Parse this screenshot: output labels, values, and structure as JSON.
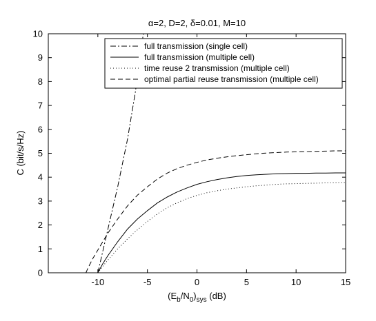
{
  "chart_data": {
    "type": "line",
    "title": "α=2, D=2, δ=0.01, M=10",
    "xlabel": {
      "base": "(E",
      "sub1": "b",
      "mid": "/N",
      "sub2": "0",
      "close": ")",
      "sub3": "sys",
      "unit": " (dB)"
    },
    "ylabel": "C (bit/s/Hz)",
    "xlim": [
      -15,
      15
    ],
    "ylim": [
      0,
      10
    ],
    "xticks": [
      -10,
      -5,
      0,
      5,
      10,
      15
    ],
    "yticks": [
      0,
      1,
      2,
      3,
      4,
      5,
      6,
      7,
      8,
      9,
      10
    ],
    "grid": false,
    "legend_position": "top-right",
    "series": [
      {
        "name": "full transmission (single cell)",
        "style": "dash-dot",
        "x": [
          -10,
          -9.0,
          -8.0,
          -7.0,
          -6.2,
          -5.6,
          -5.4
        ],
        "y": [
          0,
          1.8,
          3.6,
          5.6,
          7.6,
          9.5,
          10
        ]
      },
      {
        "name": "full transmission (multiple cell)",
        "style": "solid",
        "x": [
          -10,
          -9.5,
          -9,
          -8,
          -7,
          -6,
          -5,
          -4,
          -3,
          -2,
          -1,
          0,
          1,
          2,
          3,
          4,
          5,
          6,
          7,
          8,
          9,
          10,
          11,
          12,
          13,
          14,
          15
        ],
        "y": [
          0,
          0.38,
          0.71,
          1.3,
          1.83,
          2.25,
          2.6,
          2.92,
          3.17,
          3.38,
          3.55,
          3.7,
          3.81,
          3.9,
          3.97,
          4.03,
          4.07,
          4.1,
          4.12,
          4.14,
          4.15,
          4.16,
          4.16,
          4.17,
          4.17,
          4.18,
          4.18
        ]
      },
      {
        "name": "time reuse 2 transmission (multiple cell)",
        "style": "dotted",
        "x": [
          -10,
          -9.5,
          -9,
          -8,
          -7,
          -6,
          -5,
          -4,
          -3,
          -2,
          -1,
          0,
          1,
          2,
          3,
          4,
          5,
          6,
          7,
          8,
          9,
          10,
          11,
          12,
          13,
          14,
          15
        ],
        "y": [
          0,
          0.27,
          0.53,
          1.0,
          1.42,
          1.8,
          2.15,
          2.46,
          2.72,
          2.93,
          3.1,
          3.24,
          3.35,
          3.43,
          3.5,
          3.55,
          3.6,
          3.64,
          3.67,
          3.7,
          3.72,
          3.73,
          3.74,
          3.75,
          3.76,
          3.77,
          3.78
        ]
      },
      {
        "name": "optimal partial reuse transmission (multiple cell)",
        "style": "dashed",
        "x": [
          -11.2,
          -11,
          -10.5,
          -10,
          -9.5,
          -9,
          -8,
          -7,
          -6,
          -5,
          -4,
          -3,
          -2,
          -1,
          0,
          1,
          2,
          3,
          4,
          5,
          6,
          7,
          8,
          9,
          10,
          11,
          12,
          13,
          14,
          15
        ],
        "y": [
          0,
          0.2,
          0.6,
          0.95,
          1.3,
          1.65,
          2.25,
          2.8,
          3.25,
          3.6,
          3.92,
          4.17,
          4.36,
          4.5,
          4.62,
          4.72,
          4.79,
          4.85,
          4.9,
          4.94,
          4.98,
          5.01,
          5.03,
          5.05,
          5.06,
          5.07,
          5.08,
          5.09,
          5.1,
          5.1
        ]
      }
    ]
  }
}
